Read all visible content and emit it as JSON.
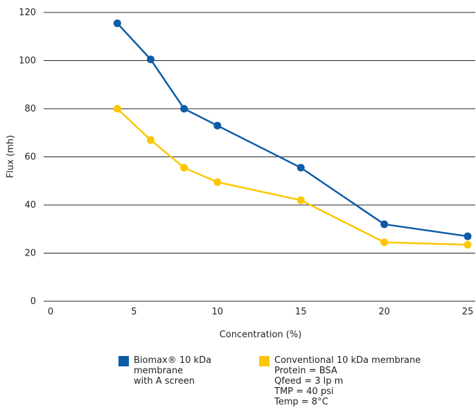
{
  "chart_data": {
    "type": "line",
    "xlabel": "Concentration (%)",
    "ylabel": "Flux (mh)",
    "xlim": [
      0,
      25
    ],
    "ylim": [
      0,
      120
    ],
    "xticks": [
      0,
      5,
      10,
      15,
      20,
      25
    ],
    "yticks": [
      0,
      20,
      40,
      60,
      80,
      100,
      120
    ],
    "grid": "horizontal",
    "legend_position": "bottom",
    "series": [
      {
        "name": "Biomax® 10 kDa membrane with A screen",
        "legend_lines": [
          "Biomax® 10 kDa",
          "membrane",
          "with A screen"
        ],
        "color": "#0d5ca6",
        "x": [
          4,
          6,
          8,
          10,
          15,
          20,
          25
        ],
        "y": [
          115.5,
          100.5,
          80,
          73,
          55.5,
          32,
          27
        ]
      },
      {
        "name": "Conventional 10 kDa membrane",
        "legend_lines": [
          "Conventional 10 kDa membrane",
          "Protein = BSA",
          "Qfeed = 3 lp m",
          "TMP = 40 psi",
          "Temp = 8°C"
        ],
        "color": "#fcc600",
        "x": [
          4,
          6,
          8,
          10,
          15,
          20,
          25
        ],
        "y": [
          80,
          67,
          55.5,
          49.5,
          42,
          24.5,
          23.5
        ]
      }
    ]
  }
}
